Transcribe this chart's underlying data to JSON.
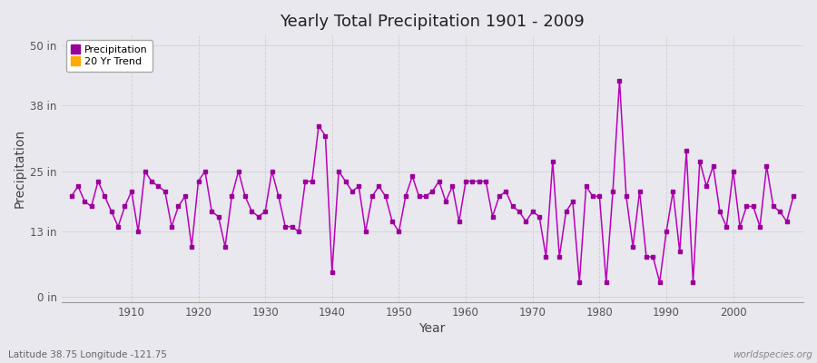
{
  "title": "Yearly Total Precipitation 1901 - 2009",
  "xlabel": "Year",
  "ylabel": "Precipitation",
  "lat_lon_label": "Latitude 38.75 Longitude -121.75",
  "watermark": "worldspecies.org",
  "legend_precip": "Precipitation",
  "legend_trend": "20 Yr Trend",
  "bg_color": "#e8e8ee",
  "line_color": "#bb00bb",
  "marker_color": "#990099",
  "trend_color": "#ffaa00",
  "yticks": [
    0,
    13,
    25,
    38,
    50
  ],
  "ytick_labels": [
    "0 in",
    "13 in",
    "25 in",
    "38 in",
    "50 in"
  ],
  "ylim": [
    -1,
    52
  ],
  "xlim": [
    1899.5,
    2010.5
  ],
  "xticks": [
    1910,
    1920,
    1930,
    1940,
    1950,
    1960,
    1970,
    1980,
    1990,
    2000
  ],
  "years": [
    1901,
    1902,
    1903,
    1904,
    1905,
    1906,
    1907,
    1908,
    1909,
    1910,
    1911,
    1912,
    1913,
    1914,
    1915,
    1916,
    1917,
    1918,
    1919,
    1920,
    1921,
    1922,
    1923,
    1924,
    1925,
    1926,
    1927,
    1928,
    1929,
    1930,
    1931,
    1932,
    1933,
    1934,
    1935,
    1936,
    1937,
    1938,
    1939,
    1940,
    1941,
    1942,
    1943,
    1944,
    1945,
    1946,
    1947,
    1948,
    1949,
    1950,
    1951,
    1952,
    1953,
    1954,
    1955,
    1956,
    1957,
    1958,
    1959,
    1960,
    1961,
    1962,
    1963,
    1964,
    1965,
    1966,
    1967,
    1968,
    1969,
    1970,
    1971,
    1972,
    1973,
    1974,
    1975,
    1976,
    1977,
    1978,
    1979,
    1980,
    1981,
    1982,
    1983,
    1984,
    1985,
    1986,
    1987,
    1988,
    1989,
    1990,
    1991,
    1992,
    1993,
    1994,
    1995,
    1996,
    1997,
    1998,
    1999,
    2000,
    2001,
    2002,
    2003,
    2004,
    2005,
    2006,
    2007,
    2008,
    2009
  ],
  "precip": [
    20,
    22,
    19,
    18,
    23,
    20,
    17,
    14,
    18,
    21,
    13,
    25,
    23,
    22,
    21,
    14,
    18,
    20,
    10,
    23,
    25,
    17,
    16,
    10,
    20,
    25,
    20,
    17,
    16,
    17,
    25,
    20,
    14,
    14,
    13,
    23,
    23,
    34,
    32,
    5,
    25,
    23,
    21,
    22,
    13,
    20,
    22,
    20,
    15,
    13,
    20,
    24,
    20,
    20,
    21,
    23,
    19,
    22,
    15,
    23,
    23,
    23,
    23,
    16,
    20,
    21,
    18,
    17,
    15,
    17,
    16,
    8,
    27,
    8,
    17,
    19,
    3,
    22,
    20,
    20,
    3,
    21,
    43,
    20,
    10,
    21,
    8,
    8,
    3,
    13,
    21,
    9,
    29,
    3,
    27,
    22,
    26,
    17,
    14,
    25,
    14,
    18,
    18,
    14,
    26,
    18,
    17,
    15,
    20
  ]
}
